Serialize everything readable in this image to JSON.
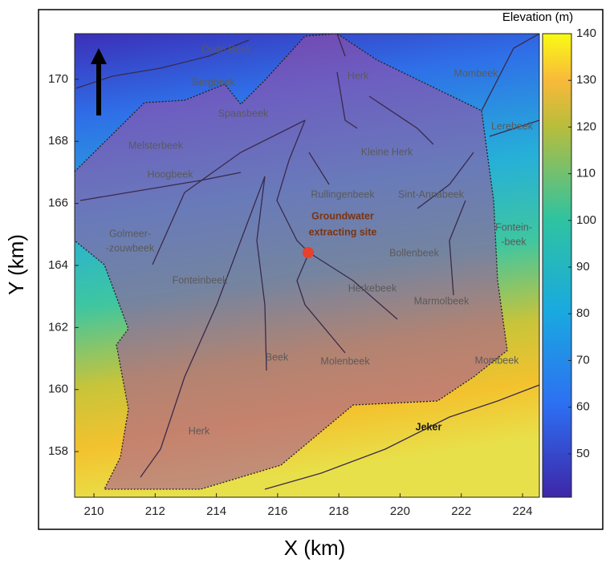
{
  "map": {
    "xlabel": "X (km)",
    "ylabel": "Y (km)",
    "xlim": [
      209.37,
      224.55
    ],
    "ylim": [
      156.53,
      171.47
    ],
    "xticks": [
      210,
      212,
      214,
      216,
      218,
      220,
      222,
      224
    ],
    "yticks": [
      158,
      160,
      162,
      164,
      166,
      168,
      170
    ],
    "colorbar": {
      "title": "Elevation (m)",
      "lim": [
        40.7,
        140
      ],
      "ticks": [
        50,
        60,
        70,
        80,
        90,
        100,
        110,
        120,
        130,
        140
      ]
    },
    "labels": [
      "Oude Beek",
      "Herk",
      "Mombeek",
      "Bergbeek",
      "Spaasbeek",
      "Lerebeek",
      "Melsterbeek",
      "Kleine Herk",
      "Hoogbeek",
      "Rullingenbeek",
      "Sint-Annabeek",
      "Golmeer-",
      "-zouwbeek",
      "Fontein-",
      "-beek",
      "Bollenbeek",
      "Fonteinbeek",
      "Herkebeek",
      "Marmolbeek",
      "Beek",
      "Molenbeek",
      "Mombeek",
      "Jeker",
      "Herk"
    ],
    "site_label": [
      "Groundwater",
      "extracting site"
    ]
  }
}
